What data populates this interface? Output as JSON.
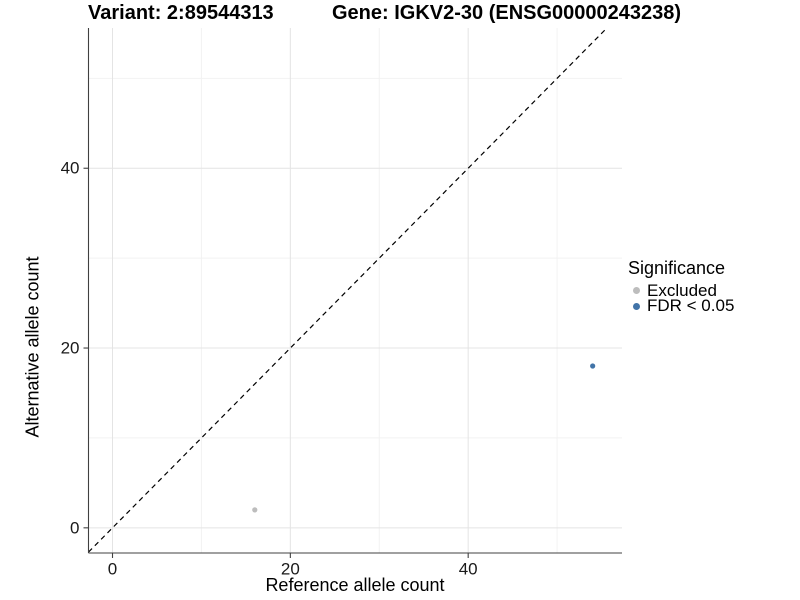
{
  "header": {
    "variant_title": "Variant: 2:89544313",
    "gene_title": "Gene: IGKV2-30 (ENSG00000243238)"
  },
  "chart_data": {
    "type": "scatter",
    "xlabel": "Reference allele count",
    "ylabel": "Alternative allele count",
    "x_ticks": [
      0,
      20,
      40
    ],
    "y_ticks": [
      0,
      20,
      40
    ],
    "x_minor_gridlines": [
      10,
      30,
      50
    ],
    "y_minor_gridlines": [
      10,
      30,
      50
    ],
    "xlim": [
      -2.7,
      57.3
    ],
    "ylim": [
      -2.8,
      55.6
    ],
    "grid": "on",
    "identity_line": {
      "slope": 1,
      "intercept": 0,
      "style": "dashed"
    },
    "legend": {
      "title": "Significance",
      "position": "right"
    },
    "series": [
      {
        "id": "excluded",
        "name": "Excluded",
        "color": "#bdbdbd",
        "points": [
          {
            "x": 16,
            "y": 2
          }
        ]
      },
      {
        "id": "fdr",
        "name": "FDR < 0.05",
        "color": "#4274a8",
        "points": [
          {
            "x": 54,
            "y": 18
          }
        ]
      }
    ]
  },
  "colors": {
    "background": "#ffffff",
    "grid_major": "#e4e4e4",
    "grid_minor": "#f2f2f2",
    "axis": "#404040",
    "identity_line": "#000000",
    "tick_label": "#1a1a1a"
  }
}
